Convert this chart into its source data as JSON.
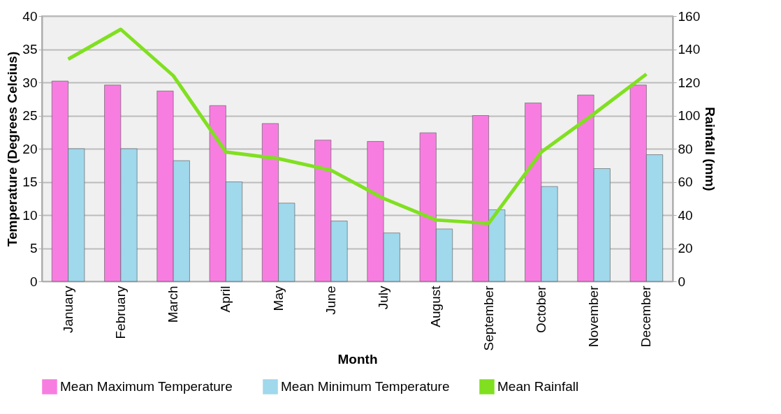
{
  "chart_data": {
    "type": "bar",
    "xlabel": "Month",
    "ylabel": "Temperature (Degrees Celcius)",
    "y2label": "Rainfall (mm)",
    "categories": [
      "January",
      "February",
      "March",
      "April",
      "May",
      "June",
      "July",
      "August",
      "September",
      "October",
      "November",
      "December"
    ],
    "series": [
      {
        "name": "Mean Maximum Temperature",
        "color": "#f77ee0",
        "values": [
          30.2,
          29.6,
          28.7,
          26.5,
          23.8,
          21.3,
          21.1,
          22.4,
          25.0,
          26.9,
          28.1,
          29.6
        ]
      },
      {
        "name": "Mean Minimum Temperature",
        "color": "#a0d8ec",
        "values": [
          20.0,
          20.0,
          18.2,
          15.0,
          11.8,
          9.1,
          7.3,
          7.9,
          10.8,
          14.3,
          17.0,
          19.1
        ]
      },
      {
        "name": "Mean Rainfall",
        "type": "line",
        "axis": "y2",
        "color": "#80e020",
        "values": [
          134,
          152,
          124,
          78,
          74,
          67,
          50,
          37,
          35,
          78,
          101,
          125
        ]
      }
    ],
    "ylim": [
      0,
      40
    ],
    "yticks": [
      0,
      5,
      10,
      15,
      20,
      25,
      30,
      35,
      40
    ],
    "y2lim": [
      0,
      160
    ],
    "y2ticks": [
      0,
      20,
      40,
      60,
      80,
      100,
      120,
      140,
      160
    ],
    "grid": "y",
    "legend": "bottom",
    "marker": "none"
  }
}
